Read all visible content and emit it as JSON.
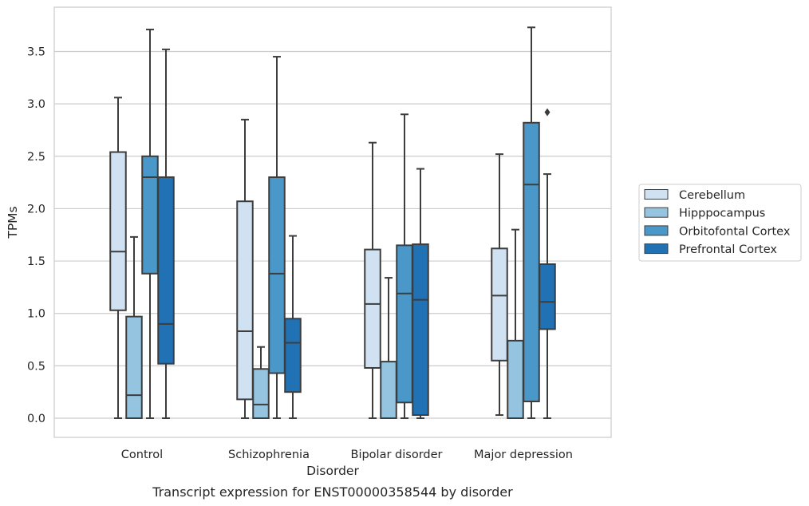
{
  "chart_data": {
    "type": "box",
    "caption": "Transcript expression for ENST00000358544 by disorder",
    "xlabel": "Disorder",
    "ylabel": "TPMs",
    "ylim": [
      -0.18,
      3.9
    ],
    "yticks": [
      "0.0",
      "0.5",
      "1.0",
      "1.5",
      "2.0",
      "2.5",
      "3.0",
      "3.5"
    ],
    "categories": [
      "Control",
      "Schizophrenia",
      "Bipolar disorder",
      "Major depression"
    ],
    "grid": "horizontal",
    "legend_position": "right",
    "series": [
      {
        "name": "Cerebellum",
        "color": "#d0e1f2",
        "boxes": [
          {
            "whisker_low": 0.0,
            "q1": 1.03,
            "median": 1.59,
            "q3": 2.54,
            "whisker_high": 3.06,
            "outliers": []
          },
          {
            "whisker_low": 0.0,
            "q1": 0.18,
            "median": 0.83,
            "q3": 2.07,
            "whisker_high": 2.85,
            "outliers": []
          },
          {
            "whisker_low": 0.0,
            "q1": 0.48,
            "median": 1.09,
            "q3": 1.61,
            "whisker_high": 2.63,
            "outliers": []
          },
          {
            "whisker_low": 0.03,
            "q1": 0.55,
            "median": 1.17,
            "q3": 1.62,
            "whisker_high": 2.52,
            "outliers": []
          }
        ]
      },
      {
        "name": "Hipppocampus",
        "color": "#94c4df",
        "boxes": [
          {
            "whisker_low": 0.0,
            "q1": 0.0,
            "median": 0.22,
            "q3": 0.97,
            "whisker_high": 1.73,
            "outliers": []
          },
          {
            "whisker_low": 0.0,
            "q1": 0.0,
            "median": 0.13,
            "q3": 0.47,
            "whisker_high": 0.68,
            "outliers": []
          },
          {
            "whisker_low": 0.0,
            "q1": 0.0,
            "median": 0.0,
            "q3": 0.54,
            "whisker_high": 1.34,
            "outliers": []
          },
          {
            "whisker_low": 0.0,
            "q1": 0.0,
            "median": 0.0,
            "q3": 0.74,
            "whisker_high": 1.8,
            "outliers": []
          }
        ]
      },
      {
        "name": "Orbitofontal Cortex",
        "color": "#4a98c9",
        "boxes": [
          {
            "whisker_low": 0.0,
            "q1": 1.38,
            "median": 2.3,
            "q3": 2.5,
            "whisker_high": 3.71,
            "outliers": []
          },
          {
            "whisker_low": 0.0,
            "q1": 0.43,
            "median": 1.38,
            "q3": 2.3,
            "whisker_high": 3.45,
            "outliers": []
          },
          {
            "whisker_low": 0.0,
            "q1": 0.15,
            "median": 1.19,
            "q3": 1.65,
            "whisker_high": 2.9,
            "outliers": []
          },
          {
            "whisker_low": 0.0,
            "q1": 0.16,
            "median": 2.23,
            "q3": 2.82,
            "whisker_high": 3.73,
            "outliers": []
          }
        ]
      },
      {
        "name": "Prefrontal Cortex",
        "color": "#2171b5",
        "boxes": [
          {
            "whisker_low": 0.0,
            "q1": 0.52,
            "median": 0.9,
            "q3": 2.3,
            "whisker_high": 3.52,
            "outliers": []
          },
          {
            "whisker_low": 0.0,
            "q1": 0.25,
            "median": 0.72,
            "q3": 0.95,
            "whisker_high": 1.74,
            "outliers": []
          },
          {
            "whisker_low": 0.0,
            "q1": 0.03,
            "median": 1.13,
            "q3": 1.66,
            "whisker_high": 2.38,
            "outliers": []
          },
          {
            "whisker_low": 0.0,
            "q1": 0.85,
            "median": 1.11,
            "q3": 1.47,
            "whisker_high": 2.33,
            "outliers": [
              2.92
            ]
          }
        ]
      }
    ]
  }
}
